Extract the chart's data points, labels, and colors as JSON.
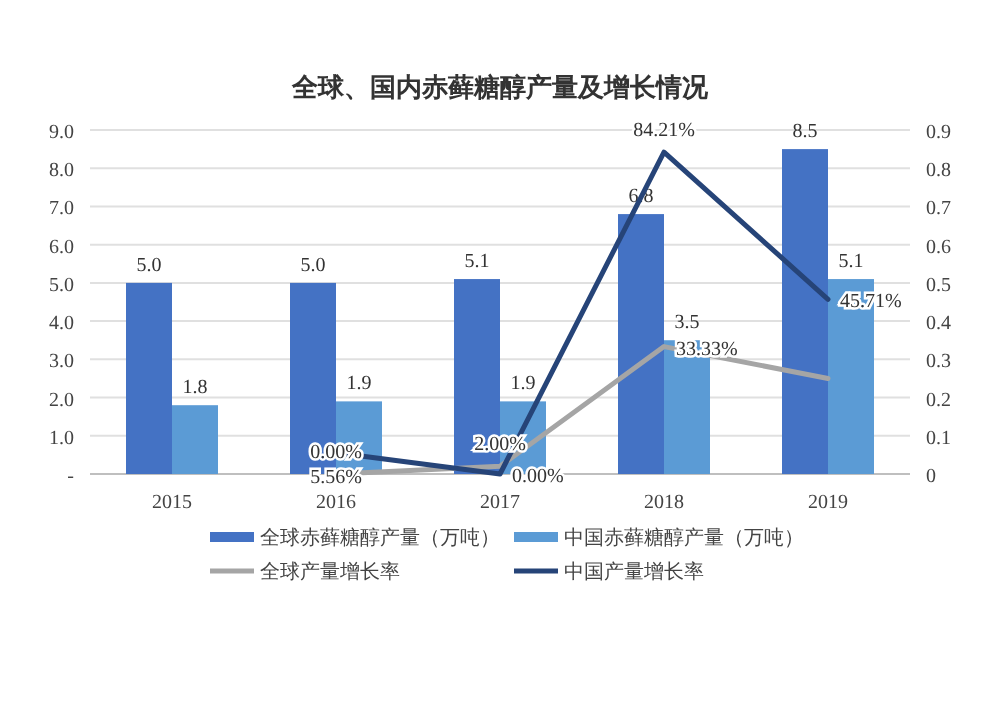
{
  "chart_data": {
    "type": "bar",
    "title": "全球、国内赤藓糖醇产量及增长情况",
    "categories": [
      "2015",
      "2016",
      "2017",
      "2018",
      "2019"
    ],
    "series": [
      {
        "name": "全球赤藓糖醇产量（万吨）",
        "color": "#4472c4",
        "values": [
          5.0,
          5.0,
          5.1,
          6.8,
          8.5
        ],
        "value_labels": [
          "5.0",
          "5.0",
          "5.1",
          "6.8",
          "8.5"
        ]
      },
      {
        "name": "中国赤藓糖醇产量（万吨）",
        "color": "#5b9bd5",
        "values": [
          1.8,
          1.9,
          1.9,
          3.5,
          5.1
        ],
        "value_labels": [
          "1.8",
          "1.9",
          "1.9",
          "3.5",
          "5.1"
        ]
      },
      {
        "name": "全球产量增长率",
        "type": "line",
        "axis": "y2",
        "color": "#a5a5a5",
        "values": [
          null,
          0,
          0.02,
          0.3333,
          0.25
        ],
        "value_labels": [
          null,
          "0.00%",
          "2.00%",
          "33.33%",
          null
        ]
      },
      {
        "name": "中国产量增长率",
        "type": "line",
        "axis": "y2",
        "color": "#264478",
        "values": [
          null,
          0.0556,
          0,
          0.8421,
          0.4571
        ],
        "value_labels": [
          null,
          "5.56%",
          "0.00%",
          "84.21%",
          "45.71%"
        ]
      }
    ],
    "ylim": [
      0,
      9
    ],
    "yticks": [
      {
        "value": 0,
        "label": "-"
      },
      {
        "value": 1,
        "label": "1.0"
      },
      {
        "value": 2,
        "label": "2.0"
      },
      {
        "value": 3,
        "label": "3.0"
      },
      {
        "value": 4,
        "label": "4.0"
      },
      {
        "value": 5,
        "label": "5.0"
      },
      {
        "value": 6,
        "label": "6.0"
      },
      {
        "value": 7,
        "label": "7.0"
      },
      {
        "value": 8,
        "label": "8.0"
      },
      {
        "value": 9,
        "label": "9.0"
      }
    ],
    "y2lim": [
      0,
      0.9
    ],
    "y2ticks": [
      0,
      0.1,
      0.2,
      0.3,
      0.4,
      0.5,
      0.6,
      0.7,
      0.8,
      0.9
    ],
    "data_labels": true,
    "grid": "y",
    "legend": "bottom"
  }
}
